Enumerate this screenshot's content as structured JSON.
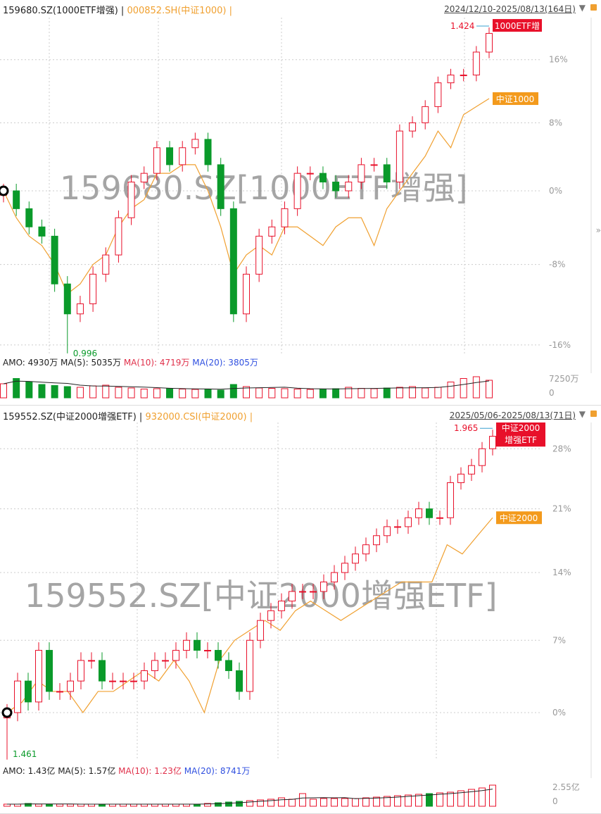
{
  "top": {
    "symbol": "159680.SZ(1000ETF增强)",
    "index": "000852.SH(中证1000)",
    "range": "2024/12/10-2025/08/13(164日)",
    "watermark": "159680.SZ[1000ETF增强]",
    "amo": {
      "amo": "AMO: 4930万",
      "ma5": "MA(5): 5035万",
      "ma10": "MA(10): 4719万",
      "ma20": "MA(20): 3805万"
    },
    "vol_axis": [
      "7250万",
      "0"
    ]
  },
  "bottom": {
    "symbol": "159552.SZ(中证2000增强ETF)",
    "index": "932000.CSI(中证2000)",
    "range": "2025/05/06-2025/08/13(71日)",
    "watermark": "159552.SZ[中证2000增强ETF]",
    "amo": {
      "amo": "AMO: 1.43亿",
      "ma5": "MA(5): 1.57亿",
      "ma10": "MA(10): 1.23亿",
      "ma20": "MA(20): 8741万"
    },
    "vol_axis": [
      "2.55亿",
      "0"
    ]
  },
  "chart_data": [
    {
      "type": "candlestick+line",
      "scale": "log",
      "yticks": [
        "16%",
        "8%",
        "0%",
        "-8%",
        "-16%"
      ],
      "ytick_values": [
        16,
        8,
        0,
        -8,
        -16
      ],
      "series": [
        {
          "name": "1000ETF增",
          "color": "#e8102a",
          "last_label": "1.424",
          "low_label": "0.996",
          "values": [
            0,
            -2,
            -4,
            -5,
            -10,
            -13,
            -12,
            -9,
            -7,
            -3,
            1,
            2,
            5,
            3,
            5,
            6,
            3,
            -2,
            -13,
            -9,
            -5,
            -4,
            -2,
            2,
            2,
            1,
            0,
            1,
            3,
            3,
            1,
            7,
            8,
            10,
            13,
            14,
            14,
            17,
            19.5
          ]
        },
        {
          "name": "中证1000",
          "color": "#f0a030",
          "values": [
            0,
            -3,
            -5,
            -6,
            -8,
            -11,
            -10,
            -8,
            -7,
            -4,
            -2,
            -1,
            2,
            2,
            3,
            3,
            0,
            -4,
            -9,
            -7,
            -6,
            -7,
            -4,
            -4,
            -5,
            -6,
            -4,
            -3,
            -3,
            -6,
            -2,
            0,
            2,
            4,
            7,
            5,
            9,
            10,
            11
          ]
        }
      ],
      "volume": [
        40,
        55,
        45,
        38,
        35,
        32,
        30,
        34,
        36,
        30,
        28,
        25,
        26,
        27,
        25,
        24,
        24,
        22,
        38,
        32,
        28,
        27,
        26,
        25,
        24,
        25,
        26,
        30,
        27,
        26,
        28,
        30,
        32,
        28,
        30,
        45,
        55,
        60,
        50
      ]
    },
    {
      "type": "candlestick+line",
      "scale": "log",
      "yticks": [
        "28%",
        "21%",
        "14%",
        "7%",
        "0%"
      ],
      "ytick_values": [
        28,
        21,
        14,
        7,
        0
      ],
      "series": [
        {
          "name": "中证2000 增强ETF",
          "color": "#e8102a",
          "last_label": "1.965",
          "low_label": "1.461",
          "values": [
            0,
            3,
            1,
            6,
            2,
            2,
            3,
            5,
            5,
            3,
            3,
            3,
            3,
            4,
            5,
            5,
            6,
            7,
            6,
            6,
            5,
            4,
            2,
            7,
            9,
            10,
            11,
            12,
            12,
            12,
            13,
            14,
            15,
            16,
            17,
            18,
            19,
            19,
            20,
            21,
            20,
            20,
            24,
            25,
            26,
            28,
            29.5
          ]
        },
        {
          "name": "中证2000",
          "color": "#f0a030",
          "values": [
            0,
            1,
            3,
            2,
            2,
            0,
            2,
            2,
            3,
            4,
            3,
            5,
            3,
            0,
            5,
            7,
            8,
            9,
            8,
            10,
            11,
            10,
            9,
            10,
            11,
            12,
            13,
            13,
            13,
            17,
            16,
            18,
            20
          ]
        }
      ],
      "volume": [
        3,
        3,
        4,
        3,
        3,
        3,
        3,
        3,
        3,
        3,
        3,
        3,
        3,
        3,
        3,
        3,
        3,
        3,
        3,
        4,
        5,
        6,
        7,
        8,
        9,
        10,
        12,
        10,
        18,
        10,
        11,
        11,
        11,
        11,
        12,
        13,
        14,
        15,
        16,
        17,
        18,
        19,
        20,
        22,
        24,
        26,
        30
      ]
    }
  ]
}
